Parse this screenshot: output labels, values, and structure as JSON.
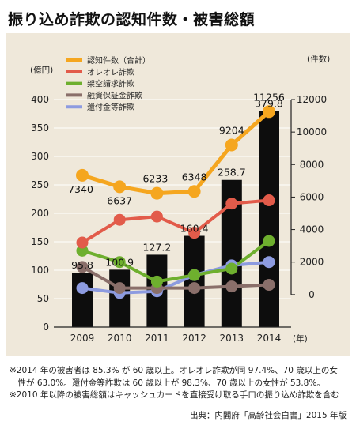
{
  "title": "振り込め詐欺の認知件数・被害総額",
  "notes": [
    "※2014 年の被害者は 85.3% が 60 歳以上。オレオレ詐欺が同 97.4%、70 歳以上の女",
    "　性が 63.0%。還付金等詐欺は 60 歳以上が 98.3%、70 歳以上の女性が 53.8%。",
    "※2010 年以降の被害総額はキャッシュカードを直接受け取る手口の振り込め詐欺を含む"
  ],
  "source": "出典：内閣府「高齢社会白書」2015 年版",
  "colors": {
    "panel": "#efe8da",
    "bar": "#0d0d0d",
    "total_cases": "#f5a61f",
    "oreore": "#e25b4a",
    "kakuu": "#6eaf2e",
    "yuushi": "#8a6f6a",
    "kanpu": "#8d9be0"
  },
  "chart_data": {
    "type": "bar+line",
    "categories": [
      "2009",
      "2010",
      "2011",
      "2012",
      "2013",
      "2014"
    ],
    "x_unit": "(年)",
    "left_axis": {
      "unit": "(億円)",
      "ylim": [
        0,
        400
      ],
      "ticks": [
        0,
        50,
        100,
        150,
        200,
        250,
        300,
        350,
        400
      ]
    },
    "right_axis": {
      "unit": "(件数)",
      "ylim": [
        -2000,
        12000
      ],
      "ticks": [
        0,
        2000,
        4000,
        6000,
        8000,
        10000,
        12000
      ]
    },
    "bars": {
      "values": [
        95.8,
        100.9,
        127.2,
        160.4,
        258.7,
        379.8
      ],
      "labels": [
        "95.8",
        "100.9",
        "127.2",
        "160.4",
        "258.7",
        "379.8"
      ]
    },
    "series": [
      {
        "name": "認知件数（合計）",
        "color": "#f5a61f",
        "values": [
          7340,
          6637,
          6233,
          6348,
          9204,
          11256
        ],
        "labels": [
          "7340",
          "6637",
          "6233",
          "6348",
          "9204",
          "11256"
        ]
      },
      {
        "name": "オレオレ詐欺",
        "color": "#e25b4a",
        "values": [
          3200,
          4600,
          4800,
          3800,
          5600,
          5800
        ]
      },
      {
        "name": "架空請求詐欺",
        "color": "#6eaf2e",
        "values": [
          2700,
          2000,
          800,
          1200,
          1600,
          3300
        ]
      },
      {
        "name": "融資保証金詐欺",
        "color": "#8a6f6a",
        "values": [
          1700,
          400,
          400,
          400,
          500,
          600
        ]
      },
      {
        "name": "還付金等詐欺",
        "color": "#8d9be0",
        "values": [
          400,
          100,
          200,
          1200,
          1800,
          2000
        ]
      }
    ],
    "legend_position": "top-left"
  }
}
